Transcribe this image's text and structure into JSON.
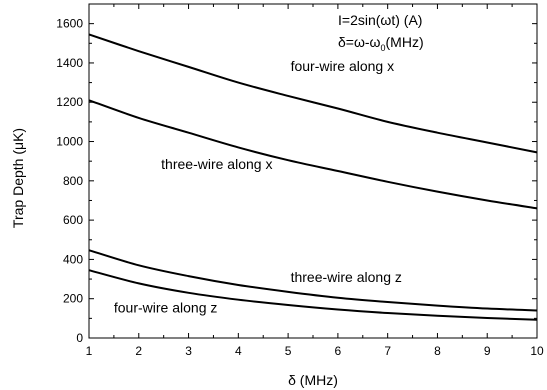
{
  "chart_data": {
    "type": "line",
    "xlabel": "δ (MHz)",
    "ylabel": "Trap Depth (μK)",
    "xlim": [
      1,
      10
    ],
    "ylim": [
      0,
      1700
    ],
    "xticks": [
      "1",
      "2",
      "3",
      "4",
      "5",
      "6",
      "7",
      "8",
      "9",
      "10"
    ],
    "yticks": [
      "0",
      "200",
      "400",
      "600",
      "800",
      "1000",
      "1200",
      "1400",
      "1600"
    ],
    "grid": false,
    "legend": "none",
    "formula_line1": "I=2sin(ωt) (A)",
    "formula_line2_prefix": "δ=ω-ω",
    "formula_line2_sub": "0",
    "formula_line2_suffix": "(MHz)",
    "series": [
      {
        "name": "four-wire along x",
        "x": [
          1,
          2,
          3,
          4,
          5,
          6,
          7,
          8,
          9,
          10
        ],
        "values": [
          1545,
          1460,
          1380,
          1300,
          1232,
          1168,
          1100,
          1045,
          995,
          945
        ]
      },
      {
        "name": "three-wire along x",
        "x": [
          1,
          2,
          3,
          4,
          5,
          6,
          7,
          8,
          9,
          10
        ],
        "values": [
          1210,
          1120,
          1045,
          970,
          905,
          850,
          795,
          745,
          700,
          660
        ]
      },
      {
        "name": "three-wire along z",
        "x": [
          1,
          2,
          3,
          4,
          5,
          6,
          7,
          8,
          9,
          10
        ],
        "values": [
          447,
          370,
          315,
          270,
          235,
          205,
          183,
          165,
          150,
          140
        ]
      },
      {
        "name": "four-wire along z",
        "x": [
          1,
          2,
          3,
          4,
          5,
          6,
          7,
          8,
          9,
          10
        ],
        "values": [
          345,
          278,
          230,
          195,
          168,
          145,
          127,
          113,
          102,
          93
        ]
      }
    ],
    "annotations": [
      {
        "text": "four-wire along x",
        "x": 5.05,
        "y": 1360
      },
      {
        "text": "three-wire along x",
        "x": 2.45,
        "y": 860
      },
      {
        "text": "three-wire along z",
        "x": 5.05,
        "y": 285
      },
      {
        "text": "four-wire along z",
        "x": 1.5,
        "y": 130
      }
    ],
    "line_color": "#000000"
  }
}
